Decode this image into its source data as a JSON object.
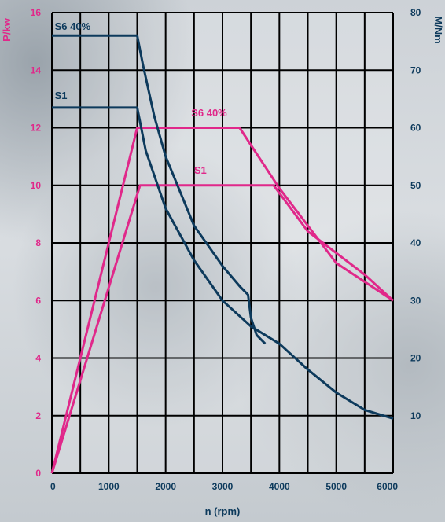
{
  "chart_data": {
    "type": "line",
    "x_axis": {
      "label": "n (rpm)",
      "range": [
        0,
        6000
      ],
      "ticks": [
        0,
        1000,
        2000,
        3000,
        4000,
        5000,
        6000
      ],
      "grid_step": 500
    },
    "y_left": {
      "label": "P/kw",
      "range": [
        0,
        16
      ],
      "ticks": [
        0,
        2,
        4,
        6,
        8,
        10,
        12,
        14,
        16
      ],
      "color": "#e0288a"
    },
    "y_right": {
      "label": "M/Nm",
      "range": [
        0,
        80
      ],
      "ticks": [
        10,
        20,
        30,
        40,
        50,
        60,
        70,
        80
      ],
      "color": "#0d3a5c"
    },
    "grid": true,
    "series": [
      {
        "name": "S6 40%",
        "kind": "power",
        "axis": "left",
        "color": "#e0288a",
        "points": [
          [
            0,
            0
          ],
          [
            1500,
            12
          ],
          [
            3300,
            12
          ],
          [
            4000,
            9.9
          ],
          [
            5000,
            7.3
          ],
          [
            6000,
            6
          ]
        ]
      },
      {
        "name": "S1",
        "kind": "power",
        "axis": "left",
        "color": "#e0288a",
        "points": [
          [
            0,
            0
          ],
          [
            1550,
            10
          ],
          [
            3900,
            10
          ],
          [
            4500,
            8.4
          ],
          [
            5500,
            6.9
          ],
          [
            6000,
            6
          ]
        ]
      },
      {
        "name": "S6 40%",
        "kind": "torque",
        "axis": "right",
        "color": "#0d3a5c",
        "points": [
          [
            0,
            76
          ],
          [
            1500,
            76
          ],
          [
            1600,
            71
          ],
          [
            1800,
            62
          ],
          [
            2000,
            55
          ],
          [
            2500,
            43
          ],
          [
            3000,
            36
          ],
          [
            3300,
            32.5
          ],
          [
            3450,
            31
          ],
          [
            3500,
            27
          ],
          [
            3600,
            24
          ],
          [
            3750,
            22.5
          ]
        ]
      },
      {
        "name": "S1",
        "kind": "torque",
        "axis": "right",
        "color": "#0d3a5c",
        "points": [
          [
            0,
            63.5
          ],
          [
            1500,
            63.5
          ],
          [
            1650,
            56
          ],
          [
            2000,
            46
          ],
          [
            2500,
            37
          ],
          [
            3000,
            30
          ],
          [
            3500,
            25.5
          ],
          [
            4000,
            22.5
          ],
          [
            4500,
            18
          ],
          [
            5000,
            14
          ],
          [
            5500,
            11
          ],
          [
            6000,
            9.5
          ]
        ]
      }
    ],
    "labels": [
      {
        "text": "S6 40%",
        "color": "#0d3a5c",
        "at": [
          50,
          77
        ]
      },
      {
        "text": "S1",
        "color": "#0d3a5c",
        "at": [
          50,
          65
        ]
      },
      {
        "text": "S6 40%",
        "color": "#e0288a",
        "at": [
          2450,
          12.4
        ]
      },
      {
        "text": "S1",
        "color": "#e0288a",
        "at": [
          2500,
          10.4
        ]
      }
    ]
  }
}
